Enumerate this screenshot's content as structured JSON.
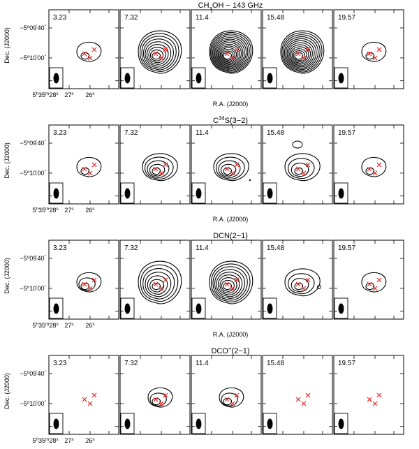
{
  "figure": {
    "rows": [
      {
        "title_parts": [
          {
            "t": "CH",
            "s": "n"
          },
          {
            "t": "3",
            "s": "sub"
          },
          {
            "t": "OH − 143 GHz",
            "s": "n"
          }
        ],
        "panels": [
          {
            "velocity": "3.23",
            "rings": 2,
            "extra": []
          },
          {
            "velocity": "7.32",
            "rings": 9,
            "extra": []
          },
          {
            "velocity": "11.4",
            "rings": 14,
            "extra": []
          },
          {
            "velocity": "15.48",
            "rings": 12,
            "extra": []
          },
          {
            "velocity": "19.57",
            "rings": 2,
            "extra": []
          }
        ]
      },
      {
        "title_parts": [
          {
            "t": "C",
            "s": "n"
          },
          {
            "t": "34",
            "s": "sup"
          },
          {
            "t": "S(3−2)",
            "s": "n"
          }
        ],
        "panels": [
          {
            "velocity": "3.23",
            "rings": 2,
            "extra": []
          },
          {
            "velocity": "7.32",
            "rings": 5,
            "extra": []
          },
          {
            "velocity": "11.4",
            "rings": 5,
            "extra": [
              "dot"
            ]
          },
          {
            "velocity": "15.48",
            "rings": 4,
            "extra": [
              "small-contour"
            ]
          },
          {
            "velocity": "19.57",
            "rings": 2,
            "extra": []
          }
        ]
      },
      {
        "title_parts": [
          {
            "t": "DCN(2−1)",
            "s": "n"
          }
        ],
        "panels": [
          {
            "velocity": "3.23",
            "rings": 3,
            "extra": []
          },
          {
            "velocity": "7.32",
            "rings": 7,
            "extra": []
          },
          {
            "velocity": "11.4",
            "rings": 9,
            "extra": []
          },
          {
            "velocity": "15.48",
            "rings": 4,
            "extra": [
              "small-contour"
            ]
          },
          {
            "velocity": "19.57",
            "rings": 2,
            "extra": []
          }
        ]
      },
      {
        "title_parts": [
          {
            "t": "DCO",
            "s": "n"
          },
          {
            "t": "+",
            "s": "sup"
          },
          {
            "t": "(2−1)",
            "s": "n"
          }
        ],
        "panels": [
          {
            "velocity": "3.23",
            "rings": 0,
            "extra": []
          },
          {
            "velocity": "7.32",
            "rings": 3,
            "extra": []
          },
          {
            "velocity": "11.4",
            "rings": 3,
            "extra": []
          },
          {
            "velocity": "15.48",
            "rings": 0,
            "extra": []
          },
          {
            "velocity": "19.57",
            "rings": 0,
            "extra": []
          }
        ]
      }
    ],
    "y_axis_label": "Dec. (J2000)",
    "y_ticks": [
      {
        "d": "−5",
        "m": "09",
        "s": "40"
      },
      {
        "d": "−5",
        "m": "10",
        "s": "00"
      }
    ],
    "x_axis_label": "R.A. (J2000)",
    "x_ticks": [
      {
        "parts": [
          {
            "t": "5",
            "s": "n"
          },
          {
            "t": "h",
            "s": "sup"
          },
          {
            "t": "35",
            "s": "n"
          },
          {
            "t": "m",
            "s": "sup"
          },
          {
            "t": "28",
            "s": "n"
          },
          {
            "t": "s",
            "s": "sup"
          }
        ]
      },
      {
        "parts": [
          {
            "t": "27",
            "s": "n"
          },
          {
            "t": "s",
            "s": "sup"
          }
        ]
      },
      {
        "parts": [
          {
            "t": "26",
            "s": "n"
          },
          {
            "t": "s",
            "s": "sup"
          }
        ]
      }
    ],
    "colors": {
      "contour": "#000000",
      "marker": "#e8231f",
      "frame": "#000000"
    }
  }
}
